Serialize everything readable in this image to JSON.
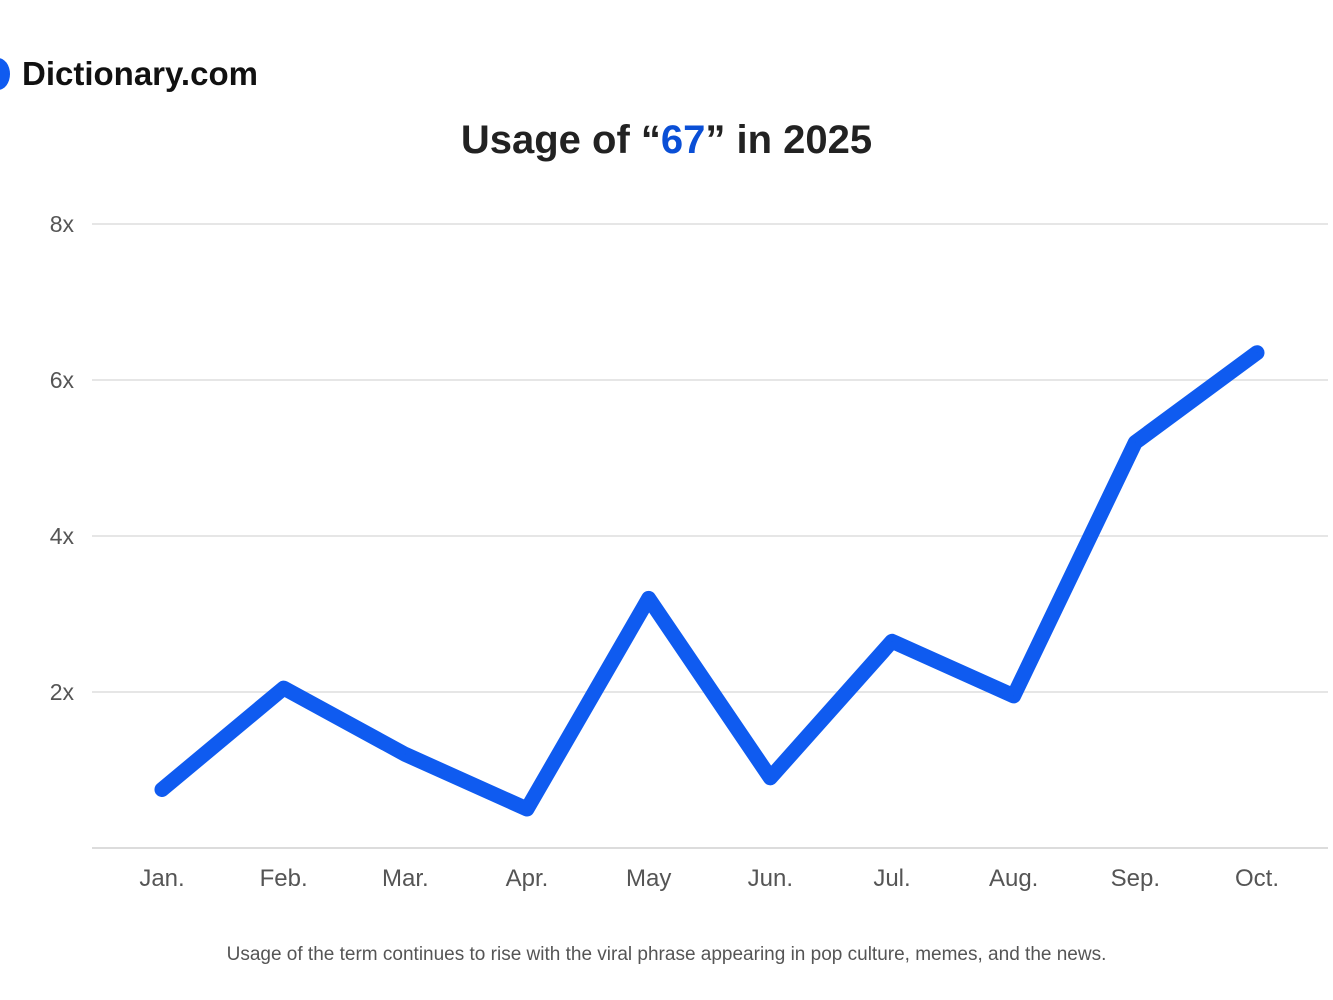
{
  "brand": {
    "name": "Dictionary.com",
    "color": "#0f5bf0"
  },
  "title": {
    "prefix": "Usage of “",
    "term": "67",
    "suffix": "” in 2025"
  },
  "caption": "Usage of the term continues to rise with the viral phrase appearing in pop culture, memes, and the news.",
  "chart_data": {
    "type": "line",
    "title": "Usage of “67” in 2025",
    "xlabel": "",
    "ylabel": "",
    "categories": [
      "Jan.",
      "Feb.",
      "Mar.",
      "Apr.",
      "May",
      "Jun.",
      "Jul.",
      "Aug.",
      "Sep.",
      "Oct."
    ],
    "series": [
      {
        "values": [
          0.75,
          2.05,
          1.2,
          0.5,
          3.2,
          0.9,
          2.65,
          1.95,
          5.2,
          6.35
        ],
        "color": "#0f5bf0"
      }
    ],
    "ylim": [
      0,
      8
    ],
    "yticks": [
      {
        "value": 2,
        "label": "2x"
      },
      {
        "value": 4,
        "label": "4x"
      },
      {
        "value": 6,
        "label": "6x"
      },
      {
        "value": 8,
        "label": "8x"
      }
    ],
    "grid": true,
    "legend": "none"
  }
}
